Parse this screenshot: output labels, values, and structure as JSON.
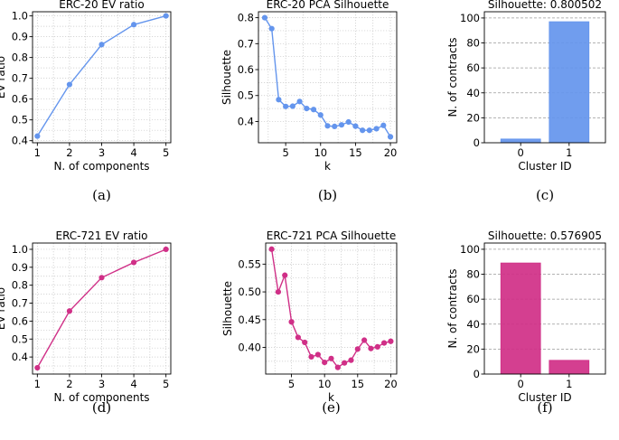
{
  "chart_data": [
    {
      "id": "a",
      "type": "line",
      "caption": "(a)",
      "title": "ERC-20 EV ratio",
      "xlabel": "N. of components",
      "ylabel": "EV ratio",
      "color": "#6495ED",
      "x": [
        1,
        2,
        3,
        4,
        5
      ],
      "y": [
        0.422,
        0.67,
        0.862,
        0.958,
        1.0
      ],
      "xlim": [
        0.85,
        5.15
      ],
      "ylim": [
        0.39,
        1.02
      ],
      "xticks": [
        1,
        2,
        3,
        4,
        5
      ],
      "xtick_labels": [
        "1",
        "2",
        "3",
        "4",
        "5"
      ],
      "yticks": [
        0.4,
        0.5,
        0.6,
        0.7,
        0.8,
        0.9,
        1.0
      ],
      "ytick_labels": [
        "0.4",
        "0.5",
        "0.6",
        "0.7",
        "0.8",
        "0.9",
        "1.0"
      ],
      "xminor": [
        1.5,
        2.5,
        3.5,
        4.5
      ],
      "yminor": [
        0.45,
        0.55,
        0.65,
        0.75,
        0.85,
        0.95
      ]
    },
    {
      "id": "b",
      "type": "line",
      "caption": "(b)",
      "title": "ERC-20 PCA Silhouette",
      "xlabel": "k",
      "ylabel": "Silhouette",
      "color": "#6495ED",
      "x": [
        2,
        3,
        4,
        5,
        6,
        7,
        8,
        9,
        10,
        11,
        12,
        13,
        14,
        15,
        16,
        17,
        18,
        19,
        20
      ],
      "y": [
        0.8,
        0.758,
        0.484,
        0.458,
        0.459,
        0.477,
        0.45,
        0.446,
        0.425,
        0.383,
        0.381,
        0.387,
        0.398,
        0.382,
        0.366,
        0.366,
        0.372,
        0.385,
        0.341
      ],
      "xlim": [
        1.1,
        20.9
      ],
      "ylim": [
        0.318,
        0.823
      ],
      "xticks": [
        5,
        10,
        15,
        20
      ],
      "xtick_labels": [
        "5",
        "10",
        "15",
        "20"
      ],
      "yticks": [
        0.4,
        0.5,
        0.6,
        0.7,
        0.8
      ],
      "ytick_labels": [
        "0.4",
        "0.5",
        "0.6",
        "0.7",
        "0.8"
      ],
      "xminor": [
        2.5,
        7.5,
        12.5,
        17.5
      ],
      "yminor": [
        0.45,
        0.55,
        0.65,
        0.75
      ]
    },
    {
      "id": "c",
      "type": "bar",
      "caption": "(c)",
      "title": "Silhouette: 0.800502",
      "xlabel": "Cluster ID",
      "ylabel": "N. of contracts",
      "color": "#6495ED",
      "categories": [
        "0",
        "1"
      ],
      "values": [
        3,
        97
      ],
      "ylim": [
        0,
        105
      ],
      "yticks": [
        0,
        20,
        40,
        60,
        80,
        100
      ],
      "ytick_labels": [
        "0",
        "20",
        "40",
        "60",
        "80",
        "100"
      ]
    },
    {
      "id": "d",
      "type": "line",
      "caption": "(d)",
      "title": "ERC-721 EV ratio",
      "xlabel": "N. of components",
      "ylabel": "EV ratio",
      "color": "#D02F87",
      "x": [
        1,
        2,
        3,
        4,
        5
      ],
      "y": [
        0.34,
        0.656,
        0.842,
        0.927,
        1.0
      ],
      "xlim": [
        0.85,
        5.15
      ],
      "ylim": [
        0.305,
        1.035
      ],
      "xticks": [
        1,
        2,
        3,
        4,
        5
      ],
      "xtick_labels": [
        "1",
        "2",
        "3",
        "4",
        "5"
      ],
      "yticks": [
        0.4,
        0.5,
        0.6,
        0.7,
        0.8,
        0.9,
        1.0
      ],
      "ytick_labels": [
        "0.4",
        "0.5",
        "0.6",
        "0.7",
        "0.8",
        "0.9",
        "1.0"
      ],
      "xminor": [
        1.5,
        2.5,
        3.5,
        4.5
      ],
      "yminor": [
        0.35,
        0.45,
        0.55,
        0.65,
        0.75,
        0.85,
        0.95
      ]
    },
    {
      "id": "e",
      "type": "line",
      "caption": "(e)",
      "title": "ERC-721 PCA Silhouette",
      "xlabel": "k",
      "ylabel": "Silhouette",
      "color": "#D02F87",
      "x": [
        2,
        3,
        4,
        5,
        6,
        7,
        8,
        9,
        10,
        11,
        12,
        13,
        14,
        15,
        16,
        17,
        18,
        19,
        20
      ],
      "y": [
        0.577,
        0.5,
        0.53,
        0.446,
        0.418,
        0.409,
        0.383,
        0.387,
        0.373,
        0.38,
        0.364,
        0.372,
        0.377,
        0.397,
        0.413,
        0.398,
        0.401,
        0.408,
        0.411
      ],
      "xlim": [
        1.1,
        20.9
      ],
      "ylim": [
        0.352,
        0.588
      ],
      "xticks": [
        5,
        10,
        15,
        20
      ],
      "xtick_labels": [
        "5",
        "10",
        "15",
        "20"
      ],
      "yticks": [
        0.4,
        0.45,
        0.5,
        0.55
      ],
      "ytick_labels": [
        "0.40",
        "0.45",
        "0.50",
        "0.55"
      ],
      "xminor": [
        2.5,
        7.5,
        12.5,
        17.5
      ],
      "yminor": [
        0.375,
        0.425,
        0.475,
        0.525,
        0.575
      ]
    },
    {
      "id": "f",
      "type": "bar",
      "caption": "(f)",
      "title": "Silhouette: 0.576905",
      "xlabel": "Cluster ID",
      "ylabel": "N. of contracts",
      "color": "#D02F87",
      "categories": [
        "0",
        "1"
      ],
      "values": [
        89,
        11
      ],
      "ylim": [
        0,
        105
      ],
      "yticks": [
        0,
        20,
        40,
        60,
        80,
        100
      ],
      "ytick_labels": [
        "0",
        "20",
        "40",
        "60",
        "80",
        "100"
      ]
    }
  ]
}
